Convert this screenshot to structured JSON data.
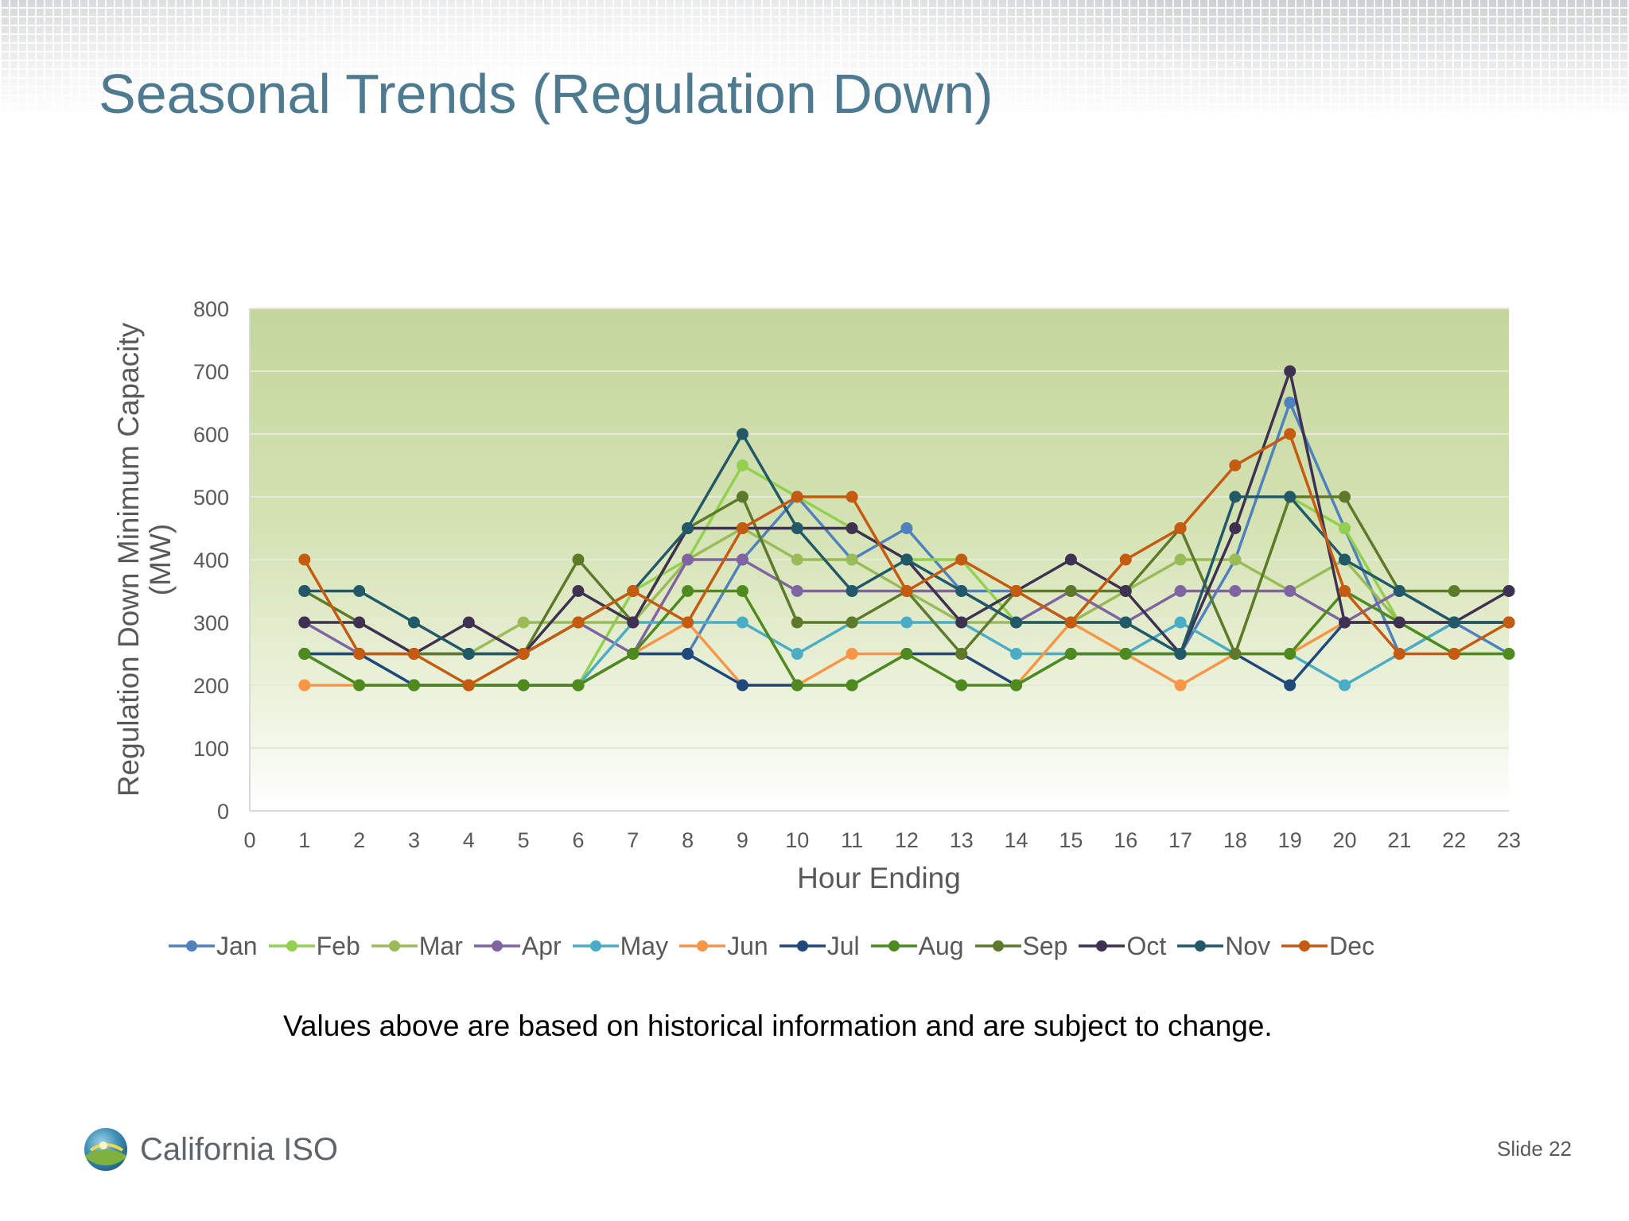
{
  "page": {
    "title": "Seasonal Trends (Regulation Down)",
    "footnote": "Values above are based on historical information and are subject to change.",
    "logo_text": "California ISO",
    "slide_number": "Slide 22"
  },
  "chart_data": {
    "type": "line",
    "title": "",
    "xlabel": "Hour Ending",
    "ylabel_line1": "Regulation Down Minimum Capacity",
    "ylabel_line2": "(MW)",
    "xlim": [
      0,
      23
    ],
    "ylim": [
      0,
      800
    ],
    "x_ticks": [
      0,
      1,
      2,
      3,
      4,
      5,
      6,
      7,
      8,
      9,
      10,
      11,
      12,
      13,
      14,
      15,
      16,
      17,
      18,
      19,
      20,
      21,
      22,
      23
    ],
    "y_ticks": [
      0,
      100,
      200,
      300,
      400,
      500,
      600,
      700,
      800
    ],
    "grid": true,
    "legend_position": "bottom",
    "x": [
      1,
      2,
      3,
      4,
      5,
      6,
      7,
      8,
      9,
      10,
      11,
      12,
      13,
      14,
      15,
      16,
      17,
      18,
      19,
      20,
      21,
      22,
      23
    ],
    "series": [
      {
        "name": "Jan",
        "color": "#4f81bd",
        "values": [
          250,
          250,
          200,
          200,
          200,
          200,
          250,
          250,
          400,
          500,
          400,
          450,
          350,
          350,
          300,
          300,
          250,
          400,
          650,
          450,
          250,
          300,
          250
        ]
      },
      {
        "name": "Feb",
        "color": "#92d050",
        "values": [
          250,
          200,
          200,
          200,
          200,
          200,
          350,
          400,
          550,
          500,
          450,
          400,
          400,
          300,
          300,
          300,
          250,
          250,
          500,
          450,
          300,
          250,
          250
        ]
      },
      {
        "name": "Mar",
        "color": "#9bbb59",
        "values": [
          250,
          250,
          250,
          250,
          300,
          300,
          300,
          400,
          450,
          400,
          400,
          350,
          300,
          300,
          300,
          350,
          400,
          400,
          350,
          400,
          300,
          300,
          300
        ]
      },
      {
        "name": "Apr",
        "color": "#8064a2",
        "values": [
          300,
          250,
          250,
          250,
          250,
          300,
          250,
          400,
          400,
          350,
          350,
          350,
          350,
          300,
          350,
          300,
          350,
          350,
          350,
          300,
          350,
          300,
          300
        ]
      },
      {
        "name": "May",
        "color": "#4bacc6",
        "values": [
          250,
          200,
          200,
          200,
          200,
          200,
          300,
          300,
          300,
          250,
          300,
          300,
          300,
          250,
          250,
          250,
          300,
          250,
          250,
          200,
          250,
          300,
          300
        ]
      },
      {
        "name": "Jun",
        "color": "#f79646",
        "values": [
          200,
          200,
          200,
          200,
          200,
          200,
          250,
          300,
          200,
          200,
          250,
          250,
          250,
          200,
          300,
          250,
          200,
          250,
          250,
          300,
          300,
          300,
          300
        ]
      },
      {
        "name": "Jul",
        "color": "#1f497d",
        "values": [
          250,
          250,
          200,
          200,
          200,
          200,
          250,
          250,
          200,
          200,
          200,
          250,
          250,
          200,
          250,
          250,
          250,
          250,
          200,
          300,
          300,
          300,
          300
        ]
      },
      {
        "name": "Aug",
        "color": "#4f8a1f",
        "values": [
          250,
          200,
          200,
          200,
          200,
          200,
          250,
          350,
          350,
          200,
          200,
          250,
          200,
          200,
          250,
          250,
          250,
          250,
          250,
          350,
          300,
          250,
          250
        ]
      },
      {
        "name": "Sep",
        "color": "#5d7a2b",
        "values": [
          350,
          300,
          250,
          250,
          250,
          400,
          300,
          450,
          500,
          300,
          300,
          350,
          250,
          350,
          350,
          350,
          450,
          250,
          500,
          500,
          350,
          350,
          350
        ]
      },
      {
        "name": "Oct",
        "color": "#3f3151",
        "values": [
          300,
          300,
          250,
          300,
          250,
          350,
          300,
          450,
          450,
          450,
          450,
          400,
          300,
          350,
          400,
          350,
          250,
          450,
          700,
          300,
          300,
          300,
          350
        ]
      },
      {
        "name": "Nov",
        "color": "#215968",
        "values": [
          350,
          350,
          300,
          250,
          250,
          300,
          350,
          450,
          600,
          450,
          350,
          400,
          350,
          300,
          300,
          300,
          250,
          500,
          500,
          400,
          350,
          300,
          300
        ]
      },
      {
        "name": "Dec",
        "color": "#c55a11",
        "values": [
          400,
          250,
          250,
          200,
          250,
          300,
          350,
          300,
          450,
          500,
          500,
          350,
          400,
          350,
          300,
          400,
          450,
          550,
          600,
          350,
          250,
          250,
          300
        ]
      }
    ]
  }
}
